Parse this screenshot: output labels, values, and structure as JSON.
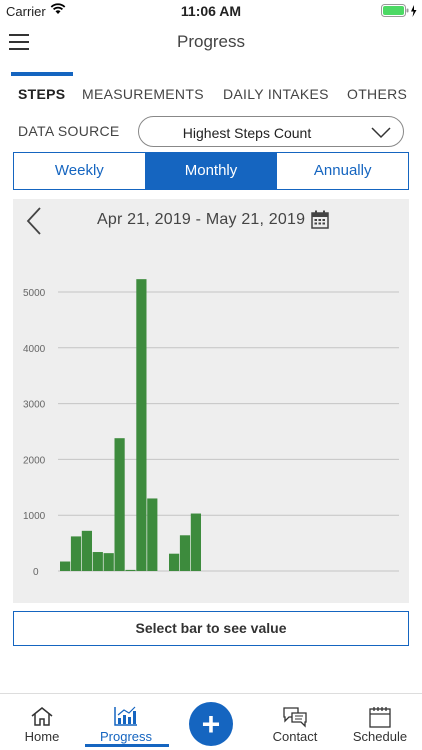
{
  "status_bar": {
    "carrier": "Carrier",
    "time": "11:06 AM"
  },
  "nav": {
    "title": "Progress"
  },
  "tabs": [
    {
      "label": "STEPS",
      "active": true
    },
    {
      "label": "MEASUREMENTS",
      "active": false
    },
    {
      "label": "DAILY INTAKES",
      "active": false
    },
    {
      "label": "OTHERS",
      "active": false
    }
  ],
  "data_source": {
    "label": "DATA SOURCE",
    "value": "Highest Steps Count"
  },
  "period": {
    "options": [
      "Weekly",
      "Monthly",
      "Annually"
    ],
    "selected": "Monthly"
  },
  "chart_header": {
    "date_range": "Apr 21, 2019 - May 21, 2019"
  },
  "chart_data": {
    "type": "bar",
    "title": "",
    "xlabel": "",
    "ylabel": "",
    "ylim": [
      0,
      5500
    ],
    "yticks": [
      0,
      1000,
      2000,
      3000,
      4000,
      5000
    ],
    "grid": true,
    "bar_color": "#3d8b3d",
    "values": [
      170,
      620,
      720,
      340,
      320,
      2380,
      20,
      5230,
      1300,
      0,
      310,
      640,
      1030
    ]
  },
  "value_hint": "Select bar to see value",
  "bottom_tabs": {
    "home": "Home",
    "progress": "Progress",
    "contact": "Contact",
    "schedule": "Schedule"
  },
  "colors": {
    "accent": "#1565c0",
    "bar": "#3d8b3d",
    "panel": "#eeeeee"
  }
}
